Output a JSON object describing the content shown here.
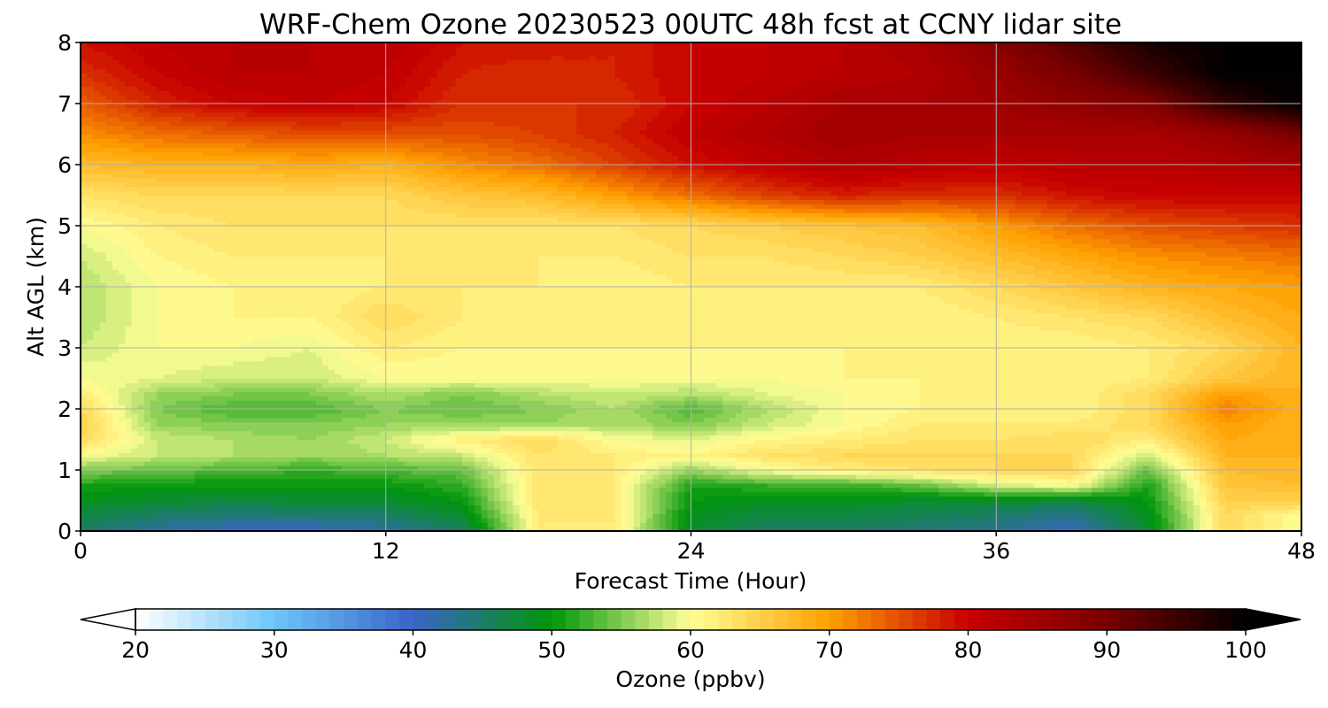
{
  "chart_data": {
    "type": "heatmap",
    "title": "WRF-Chem Ozone  20230523 00UTC 48h fcst at CCNY lidar site",
    "xlabel": "Forecast Time (Hour)",
    "ylabel": "Alt AGL (km)",
    "xlim": [
      0,
      48
    ],
    "ylim": [
      0,
      8
    ],
    "x_ticks": [
      0,
      12,
      24,
      36,
      48
    ],
    "y_ticks": [
      0,
      1,
      2,
      3,
      4,
      5,
      6,
      7,
      8
    ],
    "x_tick_labels": [
      "0",
      "12",
      "24",
      "36",
      "48"
    ],
    "y_tick_labels": [
      "0",
      "1",
      "2",
      "3",
      "4",
      "5",
      "6",
      "7",
      "8"
    ],
    "grid": true,
    "colorbar": {
      "label": "Ozone  (ppbv)",
      "orientation": "horizontal",
      "min": 20,
      "max": 100,
      "extend": "both",
      "ticks": [
        20,
        30,
        40,
        50,
        60,
        70,
        80,
        90,
        100
      ],
      "tick_labels": [
        "20",
        "30",
        "40",
        "50",
        "60",
        "70",
        "80",
        "90",
        "100"
      ],
      "color_stops": [
        {
          "value": 20,
          "color": "#ffffff"
        },
        {
          "value": 30,
          "color": "#6ec6f8"
        },
        {
          "value": 40,
          "color": "#3a63c8"
        },
        {
          "value": 50,
          "color": "#00960a"
        },
        {
          "value": 60,
          "color": "#ffff96"
        },
        {
          "value": 70,
          "color": "#ffa000"
        },
        {
          "value": 80,
          "color": "#c80000"
        },
        {
          "value": 90,
          "color": "#780000"
        },
        {
          "value": 100,
          "color": "#000000"
        }
      ]
    },
    "x_hours": [
      0,
      3,
      6,
      9,
      12,
      15,
      18,
      21,
      24,
      27,
      30,
      33,
      36,
      39,
      42,
      45,
      48
    ],
    "z_km": [
      0,
      0.25,
      0.5,
      0.75,
      1,
      1.25,
      1.5,
      1.75,
      2,
      2.25,
      2.5,
      3,
      3.5,
      4,
      4.5,
      5,
      5.5,
      6,
      6.5,
      7,
      7.5,
      8
    ],
    "ozone_ppbv": [
      [
        45,
        42,
        40,
        40,
        42,
        45,
        62,
        62,
        48,
        45,
        45,
        44,
        43,
        40,
        48,
        64,
        60
      ],
      [
        47,
        45,
        44,
        44,
        45,
        48,
        62,
        62,
        49,
        47,
        47,
        46,
        45,
        43,
        49,
        64,
        60
      ],
      [
        49,
        48,
        47,
        48,
        48,
        50,
        63,
        62,
        50,
        49,
        49,
        48,
        48,
        47,
        50,
        65,
        65
      ],
      [
        51,
        50,
        50,
        50,
        50,
        52,
        63,
        62,
        51,
        52,
        52,
        54,
        58,
        60,
        51,
        66,
        67
      ],
      [
        55,
        54,
        53,
        52,
        53,
        54,
        63,
        62,
        56,
        60,
        62,
        63,
        64,
        64,
        54,
        67,
        68
      ],
      [
        60,
        58,
        57,
        56,
        57,
        58,
        63,
        62,
        61,
        63,
        64,
        64,
        64,
        64,
        58,
        68,
        68
      ],
      [
        64,
        58,
        57,
        56,
        58,
        62,
        64,
        60,
        59,
        61,
        62,
        63,
        63,
        64,
        62,
        69,
        68
      ],
      [
        65,
        56,
        55,
        55,
        56,
        56,
        56,
        57,
        55,
        58,
        60,
        62,
        62,
        62,
        64,
        70,
        68
      ],
      [
        64,
        55,
        53,
        53,
        55,
        54,
        55,
        57,
        53,
        57,
        60,
        61,
        61,
        61,
        64,
        72,
        68
      ],
      [
        62,
        56,
        55,
        55,
        57,
        55,
        57,
        58,
        57,
        59,
        60,
        61,
        61,
        61,
        64,
        70,
        68
      ],
      [
        60,
        59,
        58,
        58,
        60,
        60,
        60,
        60,
        60,
        60,
        61,
        61,
        61,
        61,
        62,
        66,
        68
      ],
      [
        58,
        60,
        60,
        59,
        62,
        61,
        61,
        61,
        61,
        61,
        61,
        61,
        61,
        61,
        62,
        64,
        68
      ],
      [
        57,
        60,
        61,
        61,
        64,
        62,
        61,
        61,
        61,
        61,
        61,
        61,
        62,
        63,
        64,
        67,
        69
      ],
      [
        57,
        60,
        61,
        61,
        62,
        62,
        62,
        61,
        62,
        62,
        62,
        62,
        64,
        66,
        68,
        69,
        70
      ],
      [
        58,
        61,
        62,
        62,
        62,
        62,
        62,
        62,
        63,
        63,
        64,
        65,
        67,
        69,
        71,
        72,
        73
      ],
      [
        60,
        62,
        63,
        63,
        63,
        63,
        63,
        63,
        64,
        65,
        66,
        67,
        70,
        73,
        75,
        76,
        77
      ],
      [
        63,
        64,
        64,
        64,
        64,
        66,
        67,
        70,
        73,
        76,
        78,
        77,
        77,
        79,
        80,
        80,
        80
      ],
      [
        67,
        68,
        68,
        69,
        68,
        71,
        73,
        76,
        79,
        81,
        83,
        82,
        81,
        82,
        82,
        83,
        84
      ],
      [
        71,
        73,
        74,
        75,
        75,
        75,
        76,
        78,
        81,
        83,
        85,
        84,
        84,
        84,
        84,
        86,
        90
      ],
      [
        74,
        78,
        80,
        81,
        80,
        77,
        77,
        77,
        80,
        82,
        84,
        84,
        85,
        87,
        89,
        96,
        100
      ],
      [
        77,
        80,
        82,
        82,
        81,
        78,
        77,
        78,
        80,
        81,
        82,
        83,
        86,
        90,
        95,
        100,
        100
      ],
      [
        79,
        81,
        82,
        82,
        82,
        79,
        79,
        78,
        80,
        81,
        82,
        84,
        88,
        93,
        98,
        100,
        100
      ]
    ]
  }
}
